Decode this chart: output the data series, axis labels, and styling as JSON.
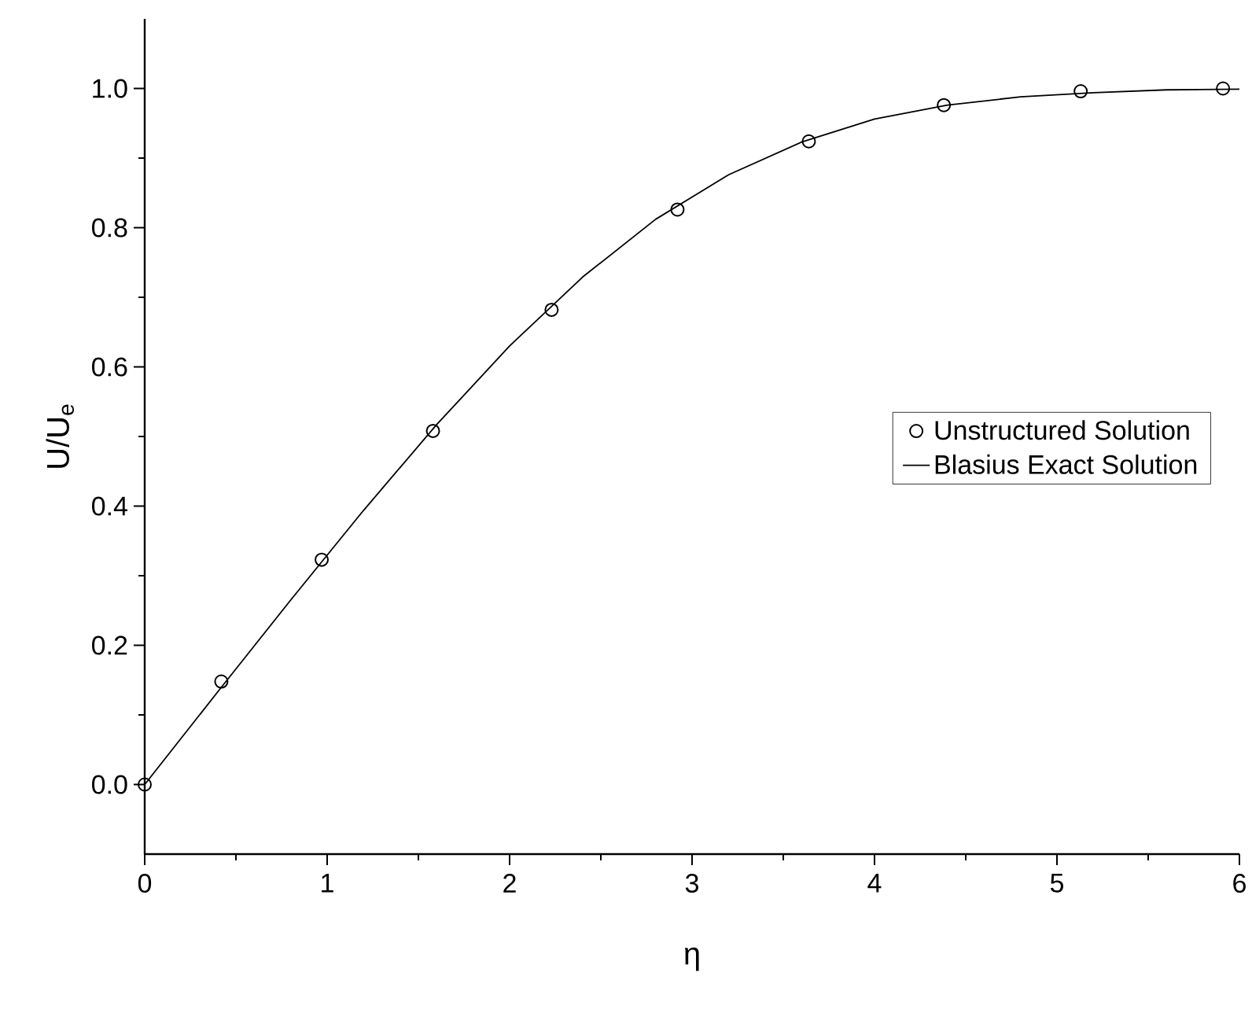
{
  "chart_data": {
    "type": "line",
    "xlabel": "η",
    "ylabel": "U/U$_{e}$",
    "xlim": [
      0,
      6
    ],
    "ylim": [
      -0.1,
      1.1
    ],
    "xticks": [
      0,
      1,
      2,
      3,
      4,
      5,
      6
    ],
    "yticks": [
      {
        "value": 0,
        "label": "0.0"
      },
      {
        "value": 0.2,
        "label": "0.2"
      },
      {
        "value": 0.4,
        "label": "0.4"
      },
      {
        "value": 0.6,
        "label": "0.6"
      },
      {
        "value": 0.8,
        "label": "0.8"
      },
      {
        "value": 1,
        "label": "1.0"
      }
    ],
    "grid": false,
    "legend": "right",
    "series": [
      {
        "name": "Unstructured Solution",
        "type": "scatter",
        "marker": "circle",
        "color": "#000000",
        "x": [
          0,
          0.42,
          0.97,
          1.58,
          2.23,
          2.92,
          3.64,
          4.38,
          5.13,
          5.91
        ],
        "values": [
          0,
          0.148,
          0.323,
          0.508,
          0.682,
          0.826,
          0.924,
          0.976,
          0.996,
          1.0
        ]
      },
      {
        "name": "Blasius Exact Solution",
        "marker": "none",
        "line_style": "solid",
        "color": "#000000",
        "x": [
          0,
          0.4,
          0.8,
          1.2,
          1.6,
          2.0,
          2.4,
          2.8,
          3.2,
          3.6,
          4.0,
          4.4,
          4.8,
          5.2,
          5.6,
          6.0
        ],
        "values": [
          0,
          0.133,
          0.265,
          0.394,
          0.517,
          0.63,
          0.729,
          0.812,
          0.876,
          0.923,
          0.956,
          0.976,
          0.988,
          0.994,
          0.998,
          0.999
        ]
      }
    ]
  }
}
